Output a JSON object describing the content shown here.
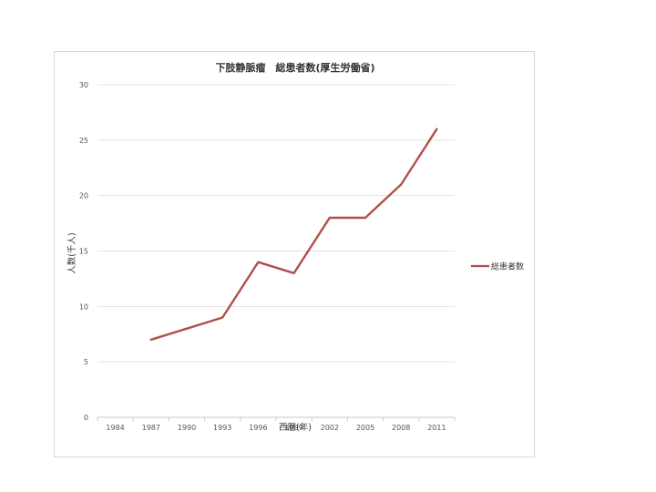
{
  "chart_data": {
    "type": "line",
    "title": "下肢静脈瘤　総患者数(厚生労働省)",
    "xlabel": "西暦(年)",
    "ylabel": "人数(千人)",
    "categories": [
      "1984",
      "1987",
      "1990",
      "1993",
      "1996",
      "1999",
      "2002",
      "2005",
      "2008",
      "2011"
    ],
    "series": [
      {
        "name": "総患者数",
        "values": [
          null,
          7,
          8,
          9,
          14,
          13,
          18,
          18,
          21,
          26
        ],
        "color": "#b0504c"
      }
    ],
    "ylim": [
      0,
      30
    ],
    "yticks": [
      0,
      5,
      10,
      15,
      20,
      25,
      30
    ],
    "grid": true,
    "legend_position": "right"
  }
}
